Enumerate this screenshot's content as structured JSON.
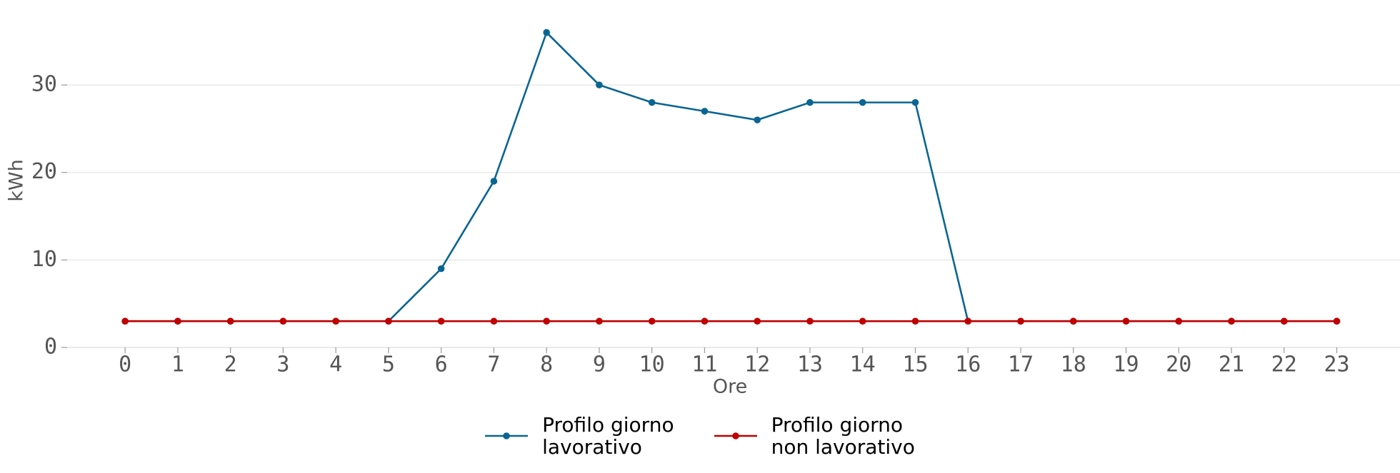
{
  "chart_data": {
    "type": "line",
    "x": [
      0,
      1,
      2,
      3,
      4,
      5,
      6,
      7,
      8,
      9,
      10,
      11,
      12,
      13,
      14,
      15,
      16,
      17,
      18,
      19,
      20,
      21,
      22,
      23
    ],
    "series": [
      {
        "name": "Profilo giorno\nlavorativo",
        "color": "#0a6592",
        "values": [
          3,
          3,
          3,
          3,
          3,
          3,
          9,
          19,
          36,
          30,
          28,
          27,
          26,
          28,
          28,
          28,
          3,
          3,
          3,
          3,
          3,
          3,
          3,
          3
        ]
      },
      {
        "name": "Profilo giorno\nnon lavorativo",
        "color": "#c00000",
        "values": [
          3,
          3,
          3,
          3,
          3,
          3,
          3,
          3,
          3,
          3,
          3,
          3,
          3,
          3,
          3,
          3,
          3,
          3,
          3,
          3,
          3,
          3,
          3,
          3
        ]
      }
    ],
    "xlabel": "Ore",
    "ylabel": "kWh",
    "xlim": [
      -1.1,
      24.2
    ],
    "xticks": [
      0,
      1,
      2,
      3,
      4,
      5,
      6,
      7,
      8,
      9,
      10,
      11,
      12,
      13,
      14,
      15,
      16,
      17,
      18,
      19,
      20,
      21,
      22,
      23
    ],
    "ylim": [
      0,
      38
    ],
    "yticks": [
      0,
      10,
      20,
      30
    ],
    "grid": true,
    "legend": "bottom"
  }
}
